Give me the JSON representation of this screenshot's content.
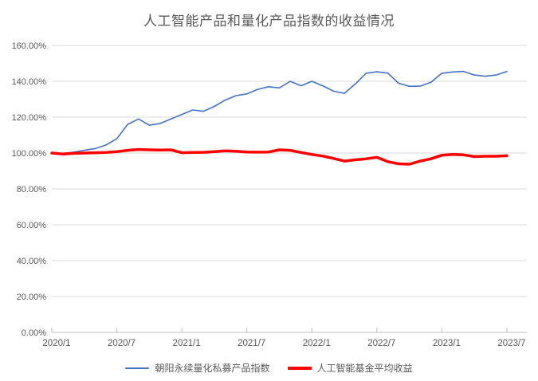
{
  "title": "人工智能产品和量化产品指数的收益情况",
  "colors": {
    "title_text": "#595959",
    "axis_text": "#595959",
    "gridline": "#d9d9d9",
    "axis_line": "#bfbfbf",
    "background": "#ffffff",
    "quant_index_blue": "#4472c4",
    "ai_fund_red": "#ff0000"
  },
  "chart_data": {
    "type": "line",
    "title": "人工智能产品和量化产品指数的收益情况",
    "xlabel": "",
    "ylabel": "",
    "grid": true,
    "legend_position": "bottom",
    "y_axis": {
      "min": 0,
      "max": 160,
      "step": 20,
      "tick_labels": [
        "0.00%",
        "20.00%",
        "40.00%",
        "60.00%",
        "80.00%",
        "100.00%",
        "120.00%",
        "140.00%",
        "160.00%"
      ]
    },
    "x_tick_labels": [
      "2020/1",
      "2020/7",
      "2021/1",
      "2021/7",
      "2022/1",
      "2022/7",
      "2023/1",
      "2023/7"
    ],
    "x_tick_indices": [
      0,
      6,
      12,
      18,
      24,
      30,
      36,
      42
    ],
    "x_months": [
      "2020/1",
      "2020/2",
      "2020/3",
      "2020/4",
      "2020/5",
      "2020/6",
      "2020/7",
      "2020/8",
      "2020/9",
      "2020/10",
      "2020/11",
      "2020/12",
      "2021/1",
      "2021/2",
      "2021/3",
      "2021/4",
      "2021/5",
      "2021/6",
      "2021/7",
      "2021/8",
      "2021/9",
      "2021/10",
      "2021/11",
      "2021/12",
      "2022/1",
      "2022/2",
      "2022/3",
      "2022/4",
      "2022/5",
      "2022/6",
      "2022/7",
      "2022/8",
      "2022/9",
      "2022/10",
      "2022/11",
      "2022/12",
      "2023/1",
      "2023/2",
      "2023/3",
      "2023/4",
      "2023/5",
      "2023/6",
      "2023/7"
    ],
    "series": [
      {
        "name": "朝阳永续量化私募产品指数",
        "color": "#4472c4",
        "stroke_width": 1.6,
        "unit": "%",
        "values": [
          100,
          99.8,
          100.5,
          101.5,
          102.5,
          104.5,
          108,
          116,
          119,
          115.5,
          116.5,
          119,
          121.5,
          124,
          123.3,
          126,
          129.5,
          132,
          133,
          135.5,
          137,
          136.3,
          140,
          137.5,
          140,
          137.5,
          134.5,
          133.3,
          138.5,
          144.5,
          145.3,
          144.6,
          139,
          137.2,
          137.3,
          139.5,
          144.5,
          145.2,
          145.5,
          143.5,
          142.8,
          143.5,
          145.5
        ]
      },
      {
        "name": "人工智能基金平均收益",
        "color": "#ff0000",
        "stroke_width": 3.5,
        "unit": "%",
        "values": [
          100,
          99.4,
          99.8,
          100,
          100.2,
          100.3,
          100.8,
          101.5,
          102,
          101.8,
          101.7,
          101.8,
          100.2,
          100.3,
          100.4,
          100.8,
          101.2,
          101,
          100.6,
          100.5,
          100.6,
          101.8,
          101.5,
          100.3,
          99.2,
          98.3,
          97,
          95.5,
          96.2,
          96.8,
          97.6,
          95.2,
          94,
          93.8,
          95.5,
          96.8,
          98.8,
          99.2,
          99,
          98,
          98.2,
          98.2,
          98.5
        ]
      }
    ]
  }
}
